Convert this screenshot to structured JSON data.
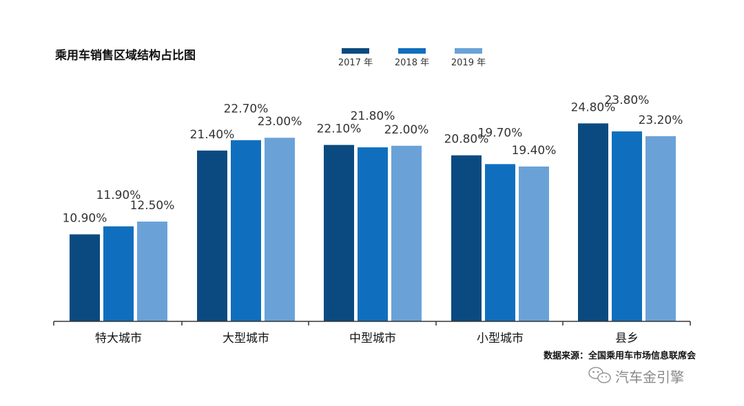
{
  "chart_data": {
    "type": "bar",
    "title": "乘用车销售区域结构占比图",
    "categories": [
      "特大城市",
      "大型城市",
      "中型城市",
      "小型城市",
      "县乡"
    ],
    "series": [
      {
        "name": "2017 年",
        "color": "#0b4a80",
        "values": [
          10.9,
          21.4,
          22.1,
          20.8,
          24.8
        ],
        "labels": [
          "10.90%",
          "21.40%",
          "22.10%",
          "20.80%",
          "24.80%"
        ]
      },
      {
        "name": "2018 年",
        "color": "#0f6fbe",
        "values": [
          11.9,
          22.7,
          21.8,
          19.7,
          23.8
        ],
        "labels": [
          "11.90%",
          "22.70%",
          "21.80%",
          "19.70%",
          "23.80%"
        ]
      },
      {
        "name": "2019 年",
        "color": "#6aa2d8",
        "values": [
          12.5,
          23.0,
          22.0,
          19.4,
          23.2
        ],
        "labels": [
          "12.50%",
          "23.00%",
          "22.00%",
          "19.40%",
          "23.20%"
        ]
      }
    ],
    "ylim": [
      0,
      25
    ],
    "legend_position": "top",
    "grid": false,
    "xlabel": "",
    "ylabel": ""
  },
  "source": "数据来源：全国乘用车市场信息联席会",
  "watermark": {
    "text": "汽车金引擎",
    "icon": "wechat-icon"
  }
}
